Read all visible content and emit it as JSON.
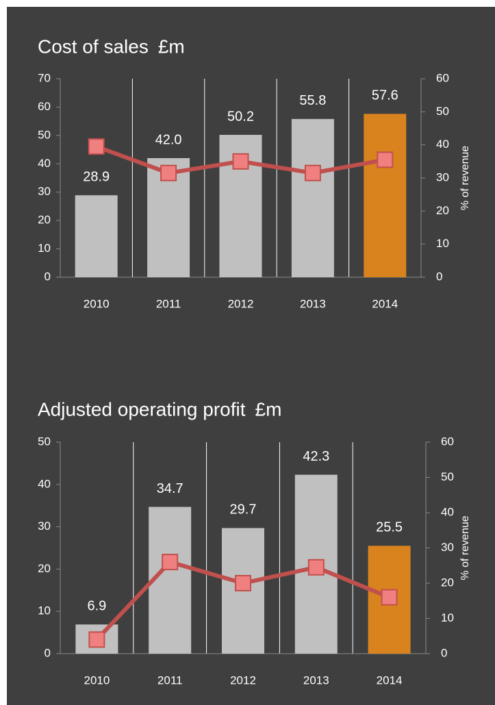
{
  "chart_data": [
    {
      "type": "combo",
      "title": "Cost of sales",
      "unit": "£m",
      "categories": [
        "2010",
        "2011",
        "2012",
        "2013",
        "2014"
      ],
      "series": [
        {
          "type": "bar",
          "colors": [
            "#c0c0c0",
            "#c0c0c0",
            "#c0c0c0",
            "#c0c0c0",
            "#d9831f"
          ],
          "values": [
            28.9,
            42.0,
            50.2,
            55.8,
            57.6
          ],
          "value_labels": [
            "28.9",
            "42.0",
            "50.2",
            "55.8",
            "57.6"
          ]
        },
        {
          "type": "line",
          "axis": "y2",
          "color": "#c0504d",
          "marker_color": "#f07f7f",
          "values": [
            39.5,
            31.5,
            35,
            31.5,
            35.5
          ]
        }
      ],
      "ylim": [
        0,
        70
      ],
      "yticks": [
        0,
        10,
        20,
        30,
        40,
        50,
        60,
        70
      ],
      "y2lim": [
        0,
        60
      ],
      "y2ticks": [
        0,
        10,
        20,
        30,
        40,
        50,
        60
      ],
      "y2label": "% of revenue",
      "xgrid": true
    },
    {
      "type": "combo",
      "title": "Adjusted operating profit",
      "unit": "£m",
      "categories": [
        "2010",
        "2011",
        "2012",
        "2013",
        "2014"
      ],
      "series": [
        {
          "type": "bar",
          "colors": [
            "#c0c0c0",
            "#c0c0c0",
            "#c0c0c0",
            "#c0c0c0",
            "#d9831f"
          ],
          "values": [
            6.9,
            34.7,
            29.7,
            42.3,
            25.5
          ]
        },
        {
          "type": "line",
          "axis": "y2",
          "color": "#c0504d",
          "marker_color": "#f07f7f",
          "values": [
            4,
            26,
            20,
            24.5,
            16
          ]
        }
      ],
      "ylim": [
        0,
        50
      ],
      "yticks": [
        0,
        10,
        20,
        30,
        40,
        50
      ],
      "y2lim": [
        0,
        60
      ],
      "y2ticks": [
        0,
        10,
        20,
        30,
        40,
        50,
        60
      ],
      "y2label": "% of revenue",
      "xgrid": true
    }
  ]
}
